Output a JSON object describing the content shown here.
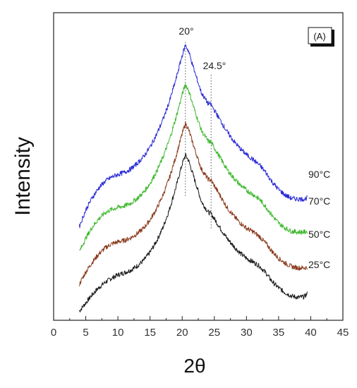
{
  "chart_data": {
    "type": "line",
    "xlabel": "2θ",
    "ylabel": "Intensity",
    "xlim": [
      0,
      45
    ],
    "xticks": [
      "0",
      "5",
      "10",
      "15",
      "20",
      "25",
      "30",
      "35",
      "40",
      "45"
    ],
    "panel_label": "(A)",
    "grid": false,
    "y_tick_labels_shown": false,
    "annotations": [
      {
        "text": "20°",
        "x": 20.5
      },
      {
        "text": "24.5°",
        "x": 24.5
      }
    ],
    "series": [
      {
        "name": "25°C",
        "color": "#1a1a1a",
        "x": [
          4,
          5,
          6,
          7,
          8,
          9,
          10,
          11,
          12,
          13,
          14,
          15,
          16,
          17,
          18,
          19,
          20,
          20.5,
          21,
          22,
          23,
          24,
          24.5,
          25,
          26,
          27,
          28,
          29,
          30,
          31,
          32,
          33,
          34,
          35,
          36,
          37,
          38,
          39,
          39.5
        ],
        "values": [
          0.0,
          0.12,
          0.24,
          0.34,
          0.42,
          0.48,
          0.53,
          0.56,
          0.6,
          0.66,
          0.74,
          0.86,
          1.02,
          1.22,
          1.48,
          1.8,
          2.15,
          2.28,
          2.2,
          1.9,
          1.6,
          1.45,
          1.42,
          1.35,
          1.2,
          1.06,
          0.95,
          0.85,
          0.77,
          0.72,
          0.66,
          0.56,
          0.43,
          0.34,
          0.27,
          0.22,
          0.2,
          0.21,
          0.26
        ]
      },
      {
        "name": "50°C",
        "color": "#8a3a1c",
        "x": [
          4,
          5,
          6,
          7,
          8,
          9,
          10,
          11,
          12,
          13,
          14,
          15,
          16,
          17,
          18,
          19,
          20,
          20.5,
          21,
          22,
          23,
          24,
          24.5,
          25,
          26,
          27,
          28,
          29,
          30,
          31,
          32,
          33,
          34,
          35,
          36,
          37,
          38,
          39,
          39.5
        ],
        "values": [
          0.0,
          0.18,
          0.32,
          0.44,
          0.53,
          0.59,
          0.62,
          0.64,
          0.68,
          0.74,
          0.82,
          0.94,
          1.1,
          1.3,
          1.55,
          1.86,
          2.2,
          2.35,
          2.26,
          1.96,
          1.68,
          1.54,
          1.52,
          1.44,
          1.28,
          1.12,
          1.0,
          0.9,
          0.82,
          0.77,
          0.7,
          0.6,
          0.48,
          0.38,
          0.31,
          0.26,
          0.24,
          0.24,
          0.25
        ]
      },
      {
        "name": "70°C",
        "color": "#3db82e",
        "x": [
          4,
          5,
          6,
          7,
          8,
          9,
          10,
          11,
          12,
          13,
          14,
          15,
          16,
          17,
          18,
          19,
          20,
          20.5,
          21,
          22,
          23,
          24,
          24.5,
          25,
          26,
          27,
          28,
          29,
          30,
          31,
          32,
          33,
          34,
          35,
          36,
          37,
          38,
          39,
          39.5
        ],
        "values": [
          0.0,
          0.2,
          0.36,
          0.48,
          0.57,
          0.62,
          0.65,
          0.67,
          0.71,
          0.78,
          0.87,
          1.0,
          1.17,
          1.38,
          1.63,
          1.95,
          2.3,
          2.45,
          2.36,
          2.05,
          1.77,
          1.62,
          1.6,
          1.52,
          1.36,
          1.2,
          1.08,
          0.98,
          0.9,
          0.84,
          0.77,
          0.66,
          0.53,
          0.42,
          0.35,
          0.3,
          0.29,
          0.29,
          0.3
        ]
      },
      {
        "name": "90°C",
        "color": "#2b2bd6",
        "x": [
          4,
          5,
          6,
          7,
          8,
          9,
          10,
          11,
          12,
          13,
          14,
          15,
          16,
          17,
          18,
          19,
          20,
          20.5,
          21,
          22,
          23,
          24,
          24.5,
          25,
          26,
          27,
          28,
          29,
          30,
          31,
          32,
          33,
          34,
          35,
          36,
          37,
          38,
          39,
          39.5
        ],
        "values": [
          0.0,
          0.24,
          0.42,
          0.56,
          0.66,
          0.72,
          0.76,
          0.79,
          0.84,
          0.92,
          1.02,
          1.16,
          1.34,
          1.56,
          1.82,
          2.14,
          2.5,
          2.65,
          2.56,
          2.24,
          1.95,
          1.8,
          1.78,
          1.7,
          1.54,
          1.38,
          1.25,
          1.14,
          1.05,
          0.98,
          0.9,
          0.79,
          0.65,
          0.54,
          0.46,
          0.41,
          0.4,
          0.4,
          0.42
        ]
      }
    ]
  }
}
